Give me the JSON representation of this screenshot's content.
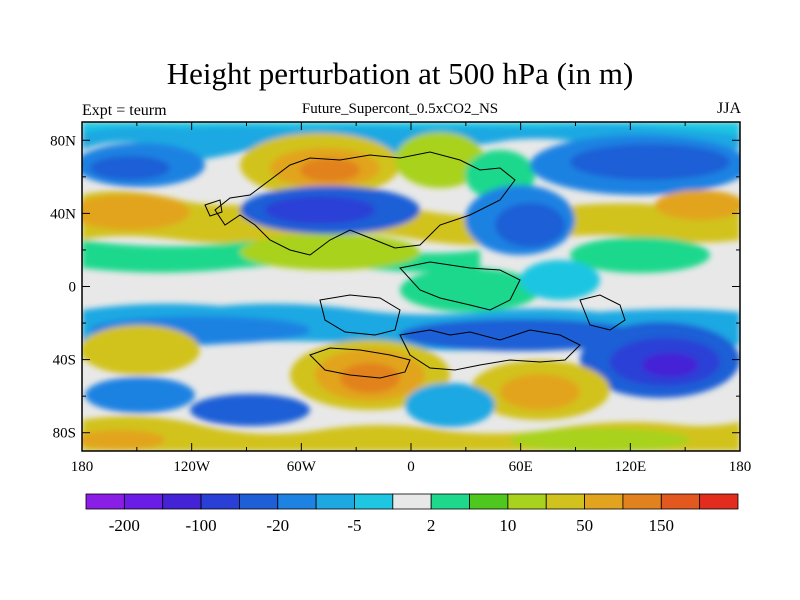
{
  "title": "Height perturbation at 500 hPa (in m)",
  "subtitle": "Future_Supercont_0.5xCO2_NS",
  "left_label": "Expt = teurm",
  "right_label": "JJA",
  "map": {
    "lon_range": [
      -180,
      180
    ],
    "lat_range": [
      -90,
      90
    ],
    "y_tick_labels": [
      {
        "lat": 80,
        "label": "80N"
      },
      {
        "lat": 40,
        "label": "40N"
      },
      {
        "lat": 0,
        "label": "0"
      },
      {
        "lat": -40,
        "label": "40S"
      },
      {
        "lat": -80,
        "label": "80S"
      }
    ],
    "x_tick_labels": [
      {
        "lon": -180,
        "label": "180"
      },
      {
        "lon": -120,
        "label": "120W"
      },
      {
        "lon": -60,
        "label": "60W"
      },
      {
        "lon": 0,
        "label": "0"
      },
      {
        "lon": 60,
        "label": "60E"
      },
      {
        "lon": 120,
        "label": "120E"
      },
      {
        "lon": 180,
        "label": "180"
      }
    ]
  },
  "colorbar": {
    "colors": [
      "#8a1ee6",
      "#6a1de6",
      "#4423d6",
      "#2a3fd6",
      "#1e5ed6",
      "#1e82e2",
      "#1ea8e2",
      "#1ec6e2",
      "#e8e8e8",
      "#1ed88c",
      "#4ec81e",
      "#a8d21e",
      "#d2c21e",
      "#e2a41e",
      "#e2821e",
      "#e2581e",
      "#e22c1e"
    ],
    "labels": [
      {
        "after_box": 1,
        "text": "-200"
      },
      {
        "after_box": 3,
        "text": "-100"
      },
      {
        "after_box": 5,
        "text": "-20"
      },
      {
        "after_box": 7,
        "text": "-5"
      },
      {
        "after_box": 9,
        "text": "2"
      },
      {
        "after_box": 11,
        "text": "10"
      },
      {
        "after_box": 13,
        "text": "50"
      },
      {
        "after_box": 15,
        "text": "150"
      }
    ]
  }
}
